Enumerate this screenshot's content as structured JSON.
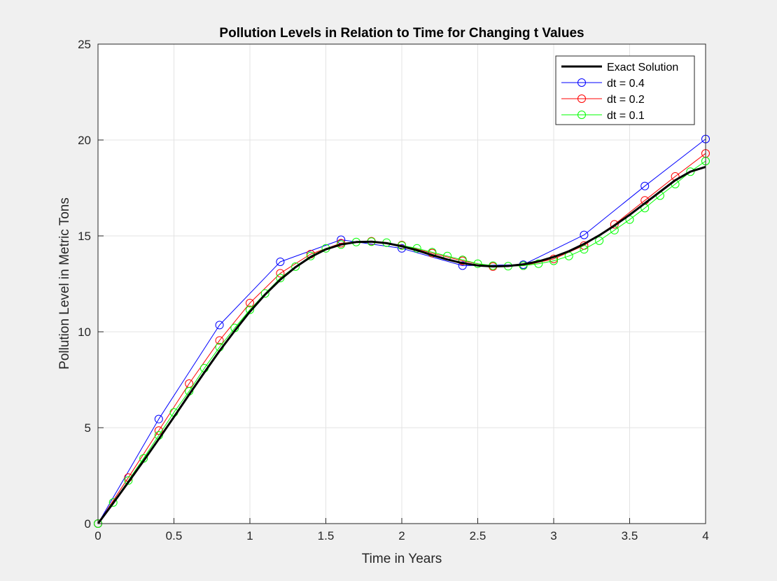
{
  "chart_data": {
    "type": "line",
    "title": "Pollution Levels in Relation to Time for Changing t Values",
    "xlabel": "Time in Years",
    "ylabel": "Pollution Level in Metric Tons",
    "xlim": [
      0,
      4
    ],
    "ylim": [
      0,
      25
    ],
    "xticks": [
      0,
      0.5,
      1,
      1.5,
      2,
      2.5,
      3,
      3.5,
      4
    ],
    "xtick_labels": [
      "0",
      "0.5",
      "1",
      "1.5",
      "2",
      "2.5",
      "3",
      "3.5",
      "4"
    ],
    "yticks": [
      0,
      5,
      10,
      15,
      20,
      25
    ],
    "ytick_labels": [
      "0",
      "5",
      "10",
      "15",
      "20",
      "25"
    ],
    "grid": true,
    "legend_position": "top-right",
    "series": [
      {
        "name": "Exact Solution",
        "color": "#000000",
        "marker": "none",
        "x": [
          0,
          0.1,
          0.2,
          0.3,
          0.4,
          0.5,
          0.6,
          0.7,
          0.8,
          0.9,
          1.0,
          1.1,
          1.2,
          1.3,
          1.4,
          1.5,
          1.6,
          1.7,
          1.8,
          1.9,
          2.0,
          2.1,
          2.2,
          2.3,
          2.4,
          2.5,
          2.6,
          2.7,
          2.8,
          2.9,
          3.0,
          3.1,
          3.2,
          3.3,
          3.4,
          3.5,
          3.6,
          3.7,
          3.8,
          3.9,
          4.0
        ],
        "y": [
          0,
          1.07,
          2.16,
          3.27,
          4.41,
          5.56,
          6.73,
          7.88,
          9.0,
          10.05,
          11.05,
          11.94,
          12.72,
          13.37,
          13.9,
          14.3,
          14.55,
          14.68,
          14.7,
          14.62,
          14.46,
          14.25,
          14.0,
          13.77,
          13.58,
          13.46,
          13.41,
          13.43,
          13.52,
          13.67,
          13.9,
          14.2,
          14.58,
          15.03,
          15.54,
          16.1,
          16.7,
          17.3,
          17.9,
          18.35,
          18.6
        ]
      },
      {
        "name": "dt = 0.4",
        "color": "#0000ff",
        "marker": "circle",
        "x": [
          0,
          0.4,
          0.8,
          1.2,
          1.6,
          2.0,
          2.4,
          2.8,
          3.2,
          3.6,
          4.0
        ],
        "y": [
          0,
          5.45,
          10.35,
          13.65,
          14.8,
          14.35,
          13.45,
          13.5,
          15.05,
          17.6,
          20.05
        ]
      },
      {
        "name": "dt = 0.2",
        "color": "#ff0000",
        "marker": "circle",
        "x": [
          0,
          0.2,
          0.4,
          0.6,
          0.8,
          1.0,
          1.2,
          1.4,
          1.6,
          1.8,
          2.0,
          2.2,
          2.4,
          2.6,
          2.8,
          3.0,
          3.2,
          3.4,
          3.6,
          3.8,
          4.0
        ],
        "y": [
          0,
          2.4,
          4.85,
          7.3,
          9.55,
          11.5,
          13.05,
          14.05,
          14.62,
          14.72,
          14.52,
          14.1,
          13.7,
          13.4,
          13.45,
          13.8,
          14.5,
          15.6,
          16.85,
          18.1,
          19.3
        ]
      },
      {
        "name": "dt = 0.1",
        "color": "#00ff00",
        "marker": "circle",
        "x": [
          0,
          0.1,
          0.2,
          0.3,
          0.4,
          0.5,
          0.6,
          0.7,
          0.8,
          0.9,
          1.0,
          1.1,
          1.2,
          1.3,
          1.4,
          1.5,
          1.6,
          1.7,
          1.8,
          1.9,
          2.0,
          2.1,
          2.2,
          2.3,
          2.4,
          2.5,
          2.6,
          2.7,
          2.8,
          2.9,
          3.0,
          3.1,
          3.2,
          3.3,
          3.4,
          3.5,
          3.6,
          3.7,
          3.8,
          3.9,
          4.0
        ],
        "y": [
          0,
          1.1,
          2.25,
          3.4,
          4.6,
          5.8,
          6.9,
          8.1,
          9.2,
          10.2,
          11.15,
          12.0,
          12.8,
          13.4,
          13.95,
          14.35,
          14.55,
          14.68,
          14.7,
          14.65,
          14.5,
          14.35,
          14.15,
          13.95,
          13.75,
          13.55,
          13.45,
          13.42,
          13.45,
          13.55,
          13.7,
          13.95,
          14.3,
          14.75,
          15.3,
          15.85,
          16.45,
          17.1,
          17.7,
          18.35,
          18.9
        ]
      }
    ]
  }
}
